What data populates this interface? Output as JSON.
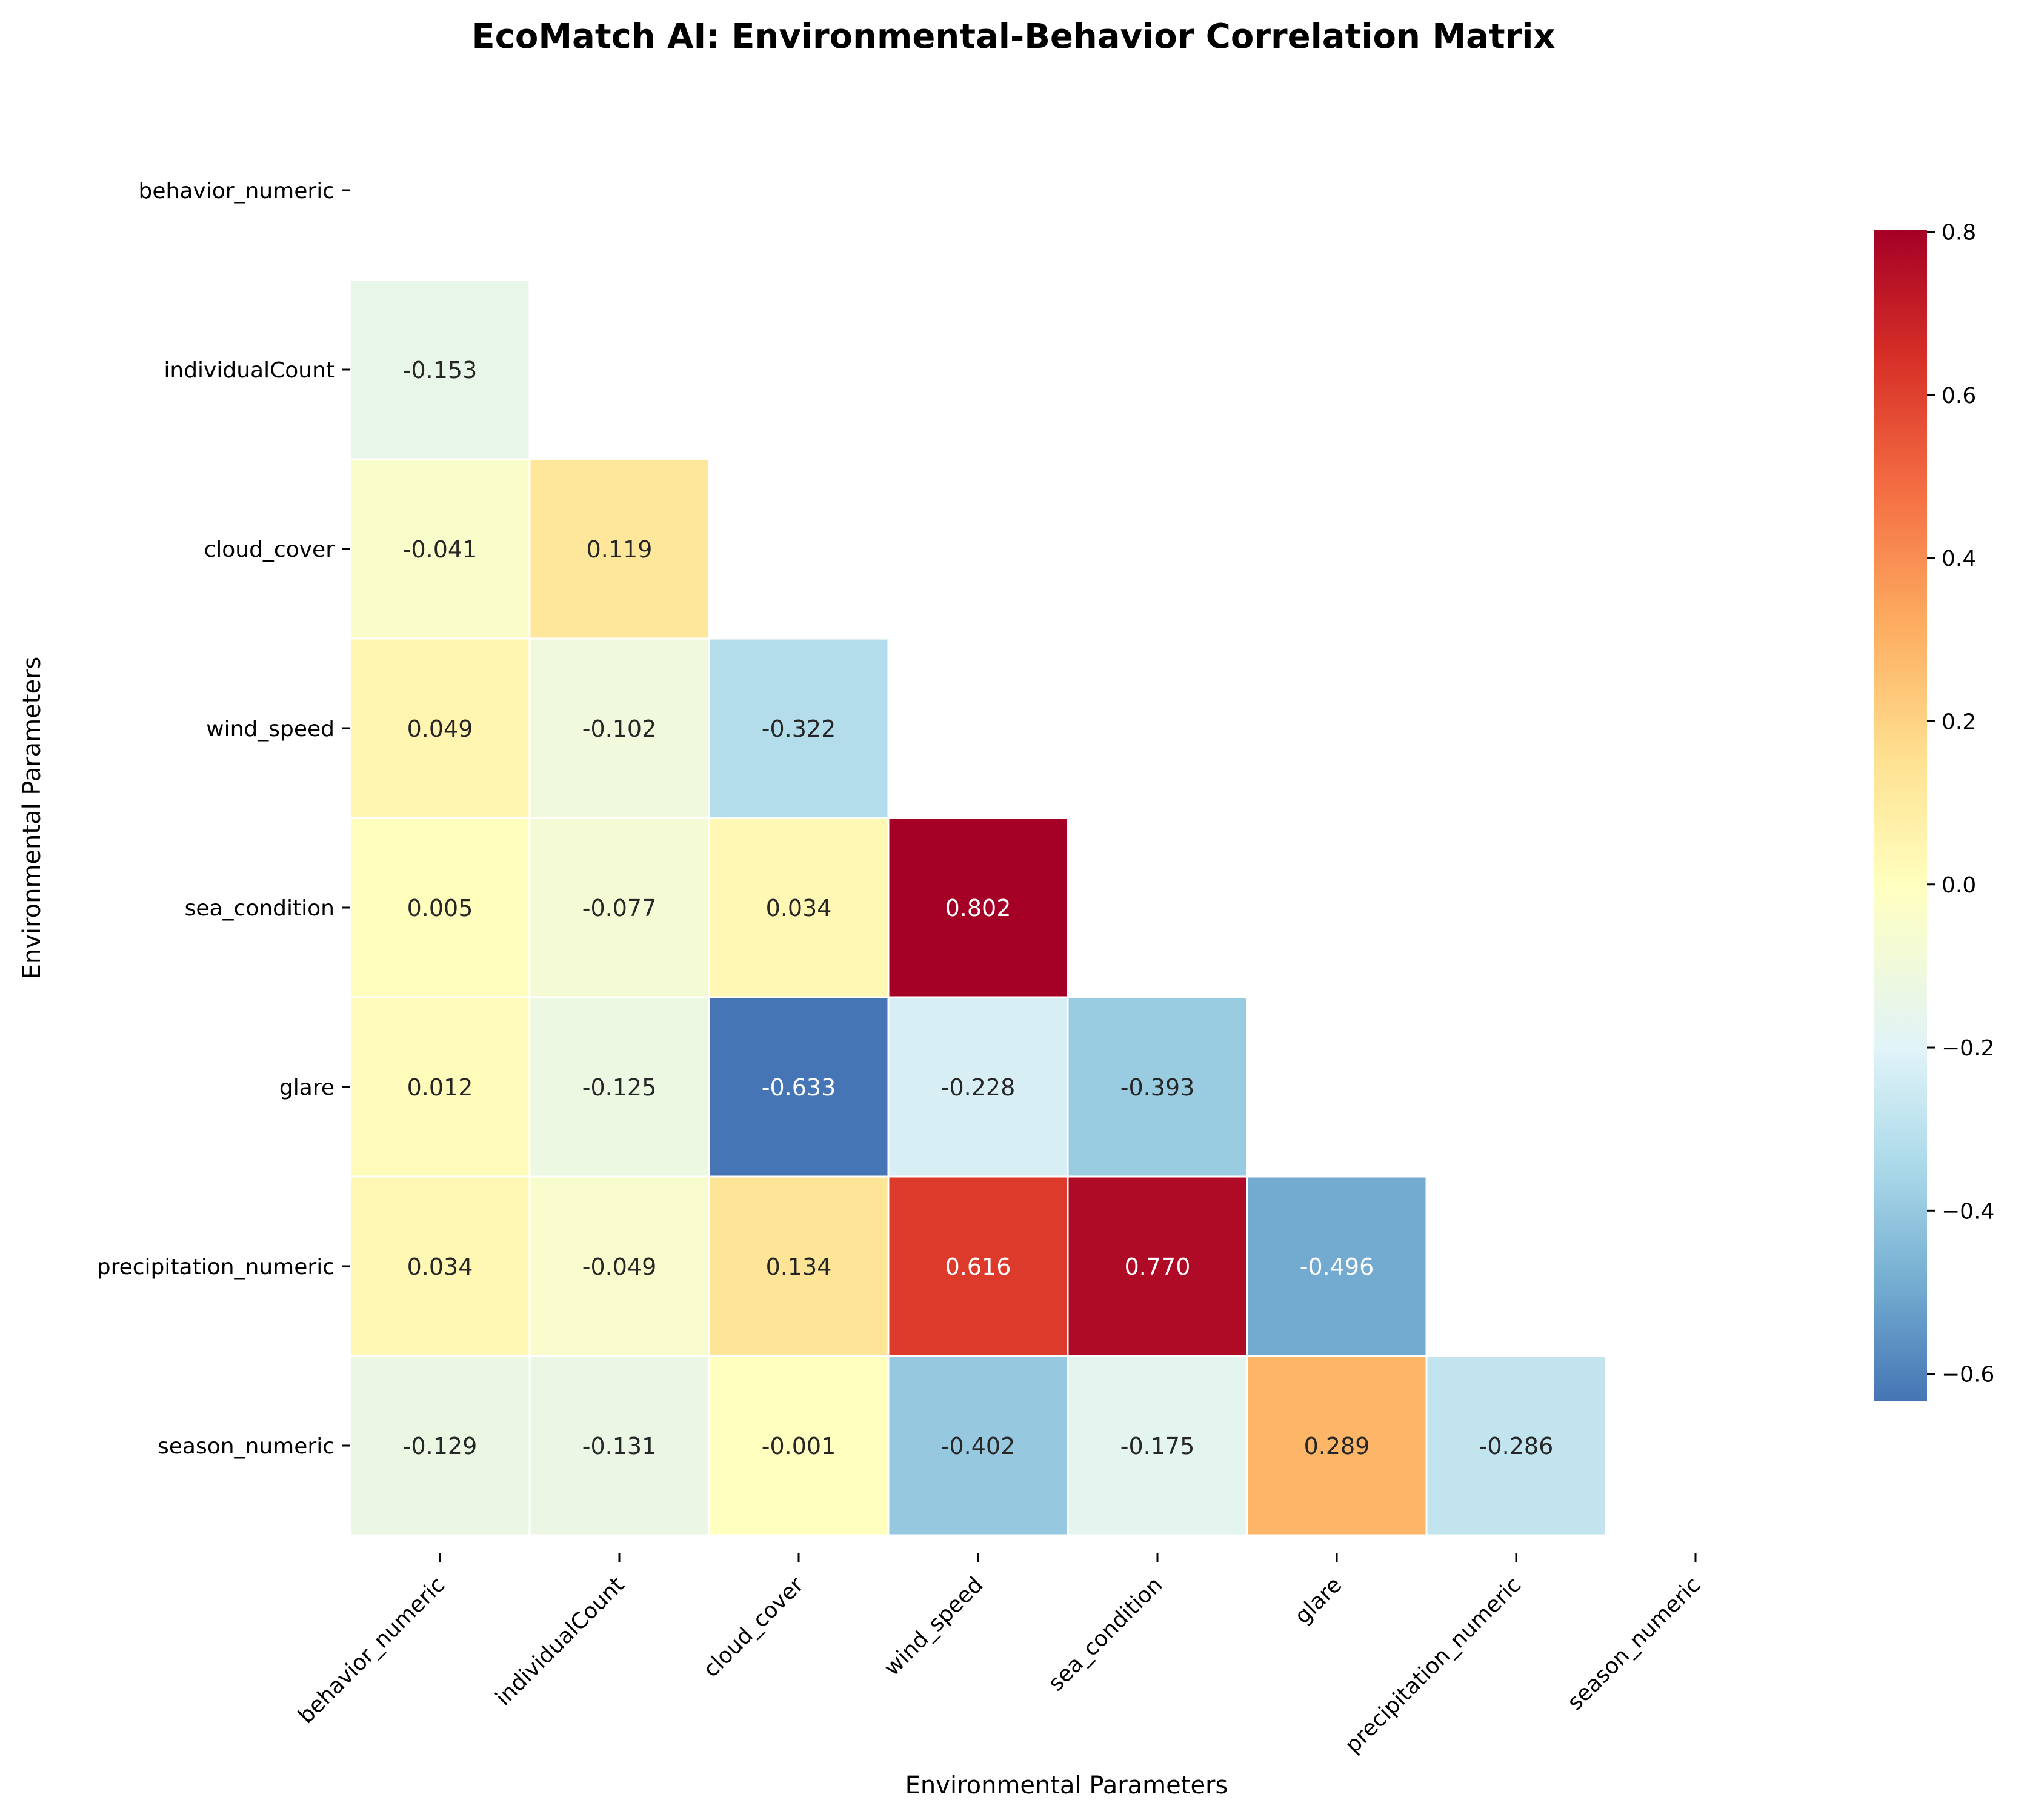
{
  "chart_data": {
    "type": "heatmap",
    "title": "EcoMatch AI: Environmental-Behavior Correlation Matrix",
    "xlabel": "Environmental Parameters",
    "ylabel": "Environmental Parameters",
    "variables": [
      "behavior_numeric",
      "individualCount",
      "cloud_cover",
      "wind_speed",
      "sea_condition",
      "glare",
      "precipitation_numeric",
      "season_numeric"
    ],
    "mask": "upper triangle and diagonal hidden",
    "matrix": [
      [
        null,
        null,
        null,
        null,
        null,
        null,
        null,
        null
      ],
      [
        "-0.153",
        null,
        null,
        null,
        null,
        null,
        null,
        null
      ],
      [
        "-0.041",
        "0.119",
        null,
        null,
        null,
        null,
        null,
        null
      ],
      [
        "0.049",
        "-0.102",
        "-0.322",
        null,
        null,
        null,
        null,
        null
      ],
      [
        "0.005",
        "-0.077",
        "0.034",
        "0.802",
        null,
        null,
        null,
        null
      ],
      [
        "0.012",
        "-0.125",
        "-0.633",
        "-0.228",
        "-0.393",
        null,
        null,
        null
      ],
      [
        "0.034",
        "-0.049",
        "0.134",
        "0.616",
        "0.770",
        "-0.496",
        null,
        null
      ],
      [
        "-0.129",
        "-0.131",
        "-0.001",
        "-0.402",
        "-0.175",
        "0.289",
        "-0.286",
        null
      ]
    ],
    "colorbar": {
      "colormap": "RdYlBu_r",
      "min": -0.633,
      "max": 0.802,
      "ticks": [
        "−0.6",
        "−0.4",
        "−0.2",
        "0.0",
        "0.2",
        "0.4",
        "0.6",
        "0.8"
      ]
    }
  }
}
